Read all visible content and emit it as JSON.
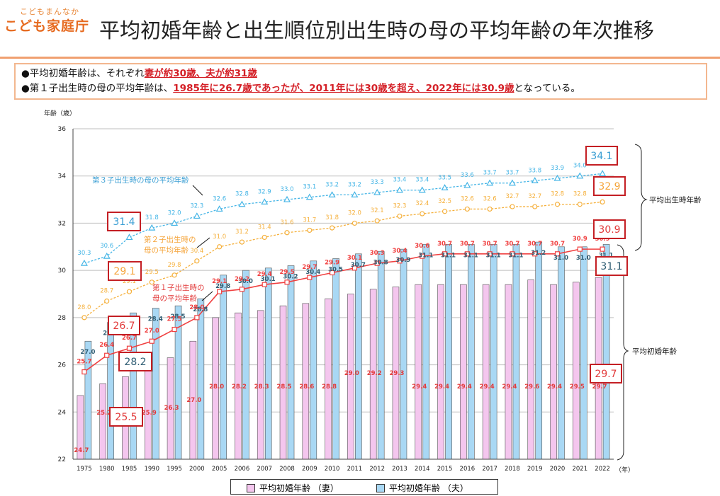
{
  "logo": {
    "small": "こどもまんなか",
    "big": "こども家庭庁"
  },
  "title": "平均初婚年齢と出生順位別出生時の母の平均年齢の年次推移",
  "summary": {
    "line1_prefix": "●平均初婚年齢は、それぞれ",
    "line1_em": "妻が約30歳、夫が約31歳",
    "line2_prefix": "●第１子出生時の母の平均年齢は、",
    "line2_em": "1985年に26.7歳であったが、2011年には30歳を超え、2022年には30.9歳",
    "line2_suffix": "となっている。"
  },
  "chart_data": {
    "type": "bar",
    "ylabel": "年齢（歳）",
    "xunit": "（年）",
    "ylim": [
      22,
      36
    ],
    "yticks": [
      22,
      24,
      26,
      28,
      30,
      32,
      34,
      36
    ],
    "categories": [
      "1975",
      "1980",
      "1985",
      "1990",
      "1995",
      "2000",
      "2005",
      "2006",
      "2007",
      "2008",
      "2009",
      "2010",
      "2011",
      "2012",
      "2013",
      "2014",
      "2015",
      "2016",
      "2017",
      "2018",
      "2019",
      "2020",
      "2021",
      "2022"
    ],
    "series": [
      {
        "name": "平均初婚年齢 （妻）",
        "kind": "bar",
        "color": "#f4c6ee",
        "values": [
          24.7,
          25.2,
          25.5,
          25.9,
          26.3,
          27.0,
          28.0,
          28.2,
          28.3,
          28.5,
          28.6,
          28.8,
          29.0,
          29.2,
          29.3,
          29.4,
          29.4,
          29.4,
          29.4,
          29.4,
          29.6,
          29.4,
          29.5,
          29.7
        ]
      },
      {
        "name": "平均初婚年齢 （夫）",
        "kind": "bar",
        "color": "#a9d8f4",
        "values": [
          27.0,
          27.8,
          28.2,
          28.4,
          28.5,
          28.8,
          29.8,
          30.0,
          30.1,
          30.2,
          30.4,
          30.5,
          30.7,
          30.8,
          30.9,
          31.1,
          31.1,
          31.1,
          31.1,
          31.1,
          31.2,
          31.0,
          31.0,
          31.1
        ]
      },
      {
        "name": "第１子出生時の母の平均年齢",
        "kind": "line",
        "color": "#f04040",
        "marker": "square",
        "values": [
          25.7,
          26.4,
          26.7,
          27.0,
          27.5,
          28.0,
          29.1,
          29.2,
          29.4,
          29.5,
          29.7,
          29.9,
          30.1,
          30.3,
          30.4,
          30.6,
          30.7,
          30.7,
          30.7,
          30.7,
          30.7,
          30.7,
          30.9,
          30.9
        ]
      },
      {
        "name": "第２子出生時の母の平均年齢",
        "kind": "line",
        "color": "#f5b03c",
        "marker": "circle",
        "values": [
          28.0,
          28.7,
          29.1,
          29.5,
          29.8,
          30.4,
          31.0,
          31.2,
          31.4,
          31.6,
          31.7,
          31.8,
          32.0,
          32.1,
          32.3,
          32.4,
          32.5,
          32.6,
          32.6,
          32.7,
          32.7,
          32.8,
          32.8,
          32.9
        ]
      },
      {
        "name": "第３子出生時の母の平均年齢",
        "kind": "line",
        "color": "#45b5e6",
        "marker": "triangle",
        "values": [
          30.3,
          30.6,
          31.4,
          31.8,
          32.0,
          32.3,
          32.6,
          32.8,
          32.9,
          33.0,
          33.1,
          33.2,
          33.2,
          33.3,
          33.4,
          33.4,
          33.5,
          33.6,
          33.7,
          33.7,
          33.8,
          33.9,
          34.0,
          34.1
        ]
      }
    ],
    "annotations": {
      "third": "第３子出生時の母の平均年齢",
      "second_a": "第２子出生時の",
      "second_b": "母の平均年齢",
      "first_a": "第１子出生時の",
      "first_b": "母の平均年齢",
      "bracket_birth": "平均出生時年齢",
      "bracket_marriage": "平均初婚年齢"
    },
    "callouts": [
      "31.4",
      "29.1",
      "26.7",
      "28.2",
      "25.5",
      "34.1",
      "32.9",
      "30.9",
      "31.1",
      "29.7"
    ]
  },
  "legend": {
    "wife": "平均初婚年齢 （妻）",
    "husband": "平均初婚年齢 （夫）"
  },
  "colors": {
    "accent": "#d41f26",
    "orange": "#e66a1f"
  }
}
